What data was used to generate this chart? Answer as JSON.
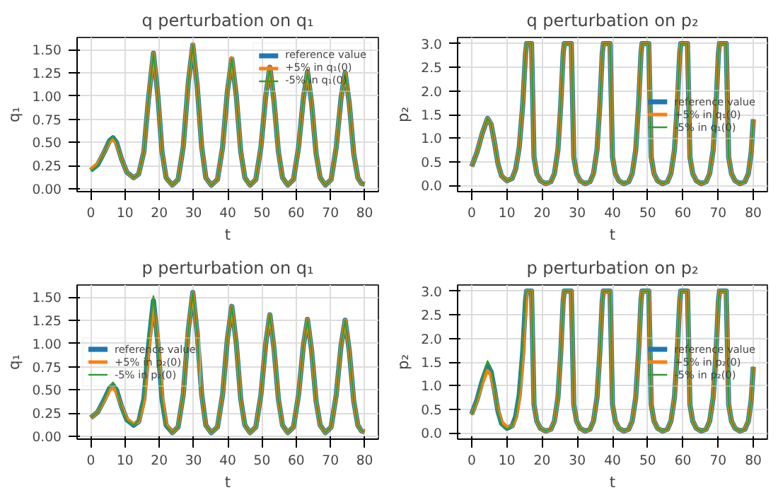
{
  "chart_data": [
    {
      "type": "line",
      "title": "q perturbation on q₁",
      "xlabel": "t",
      "ylabel": "q₁",
      "grid": true,
      "legend": "top right",
      "xlim": [
        -4,
        84
      ],
      "xticks": [
        0,
        10,
        20,
        30,
        40,
        50,
        60,
        70,
        80
      ],
      "ylim": [
        -0.03,
        1.63
      ],
      "yticks": [
        {
          "value": 0,
          "label": "0.00"
        },
        {
          "value": 0.25,
          "label": "0.25"
        },
        {
          "value": 0.5,
          "label": "0.50"
        },
        {
          "value": 0.75,
          "label": "0.75"
        },
        {
          "value": 1,
          "label": "1.00"
        },
        {
          "value": 1.25,
          "label": "1.25"
        },
        {
          "value": 1.5,
          "label": "1.50"
        }
      ],
      "x": [
        0,
        2,
        4,
        5.5,
        6.5,
        7.5,
        9,
        10.5,
        12.5,
        14,
        15.5,
        16.8,
        18.3,
        19.6,
        20.8,
        22,
        23.8,
        25.5,
        27,
        28.5,
        29.8,
        31.1,
        32.4,
        33.6,
        35.2,
        37,
        38.5,
        39.9,
        41.2,
        42.5,
        43.8,
        45,
        46.5,
        48.2,
        49.7,
        51.1,
        52.3,
        53.5,
        54.8,
        56,
        57.5,
        59.2,
        60.7,
        62.1,
        63.3,
        64.5,
        65.8,
        67,
        68.5,
        70.2,
        71.7,
        73.1,
        74.3,
        75.5,
        76.8,
        78,
        79,
        80
      ],
      "series": [
        {
          "name": "reference value",
          "color": "#1f77b4",
          "values": [
            0.2,
            0.26,
            0.4,
            0.52,
            0.55,
            0.5,
            0.32,
            0.18,
            0.12,
            0.16,
            0.4,
            0.95,
            1.46,
            1.0,
            0.4,
            0.12,
            0.04,
            0.1,
            0.45,
            1.15,
            1.55,
            1.1,
            0.45,
            0.12,
            0.04,
            0.1,
            0.45,
            1.05,
            1.4,
            1.0,
            0.4,
            0.12,
            0.04,
            0.1,
            0.45,
            1.0,
            1.31,
            0.95,
            0.4,
            0.12,
            0.04,
            0.1,
            0.45,
            0.98,
            1.26,
            0.92,
            0.38,
            0.12,
            0.04,
            0.1,
            0.45,
            0.98,
            1.25,
            0.92,
            0.38,
            0.12,
            0.06,
            0.05
          ]
        },
        {
          "name": "+5% in q₁(0)",
          "color": "#ff7f0e",
          "values": [
            0.21,
            0.27,
            0.4,
            0.51,
            0.53,
            0.49,
            0.32,
            0.18,
            0.12,
            0.16,
            0.4,
            0.95,
            1.46,
            1.0,
            0.4,
            0.12,
            0.04,
            0.1,
            0.45,
            1.15,
            1.56,
            1.1,
            0.45,
            0.12,
            0.04,
            0.1,
            0.45,
            1.05,
            1.41,
            1.0,
            0.4,
            0.12,
            0.04,
            0.1,
            0.45,
            1.0,
            1.31,
            0.95,
            0.4,
            0.12,
            0.04,
            0.1,
            0.45,
            0.98,
            1.26,
            0.92,
            0.38,
            0.12,
            0.04,
            0.1,
            0.45,
            0.98,
            1.25,
            0.92,
            0.38,
            0.12,
            0.06,
            0.05
          ]
        },
        {
          "name": "-5% in q₁(0)",
          "color": "#2ca02c",
          "values": [
            0.19,
            0.25,
            0.4,
            0.53,
            0.56,
            0.51,
            0.32,
            0.18,
            0.12,
            0.16,
            0.4,
            0.95,
            1.46,
            1.0,
            0.4,
            0.12,
            0.04,
            0.1,
            0.45,
            1.15,
            1.55,
            1.1,
            0.45,
            0.12,
            0.04,
            0.1,
            0.45,
            1.05,
            1.4,
            1.0,
            0.4,
            0.12,
            0.04,
            0.1,
            0.45,
            1.0,
            1.31,
            0.95,
            0.4,
            0.12,
            0.04,
            0.1,
            0.45,
            0.98,
            1.26,
            0.92,
            0.38,
            0.12,
            0.04,
            0.1,
            0.45,
            0.98,
            1.25,
            0.92,
            0.38,
            0.12,
            0.06,
            0.05
          ]
        }
      ]
    },
    {
      "type": "line",
      "title": "q perturbation on p₂",
      "xlabel": "t",
      "ylabel": "p₂",
      "grid": true,
      "legend": "right",
      "xlim": [
        -4,
        84
      ],
      "xticks": [
        0,
        10,
        20,
        30,
        40,
        50,
        60,
        70,
        80
      ],
      "ylim": [
        -0.13,
        3.13
      ],
      "yticks": [
        {
          "value": 0,
          "label": "0.0"
        },
        {
          "value": 0.5,
          "label": "0.5"
        },
        {
          "value": 1,
          "label": "1.0"
        },
        {
          "value": 1.5,
          "label": "1.5"
        },
        {
          "value": 2,
          "label": "2.0"
        },
        {
          "value": 2.5,
          "label": "2.5"
        },
        {
          "value": 3,
          "label": "3.0"
        }
      ],
      "x": [
        0,
        1.5,
        3,
        4.5,
        5.5,
        6.5,
        7.5,
        8.5,
        10,
        11.5,
        12.5,
        13.5,
        14.5,
        15.3,
        15.6,
        17.0,
        17.3,
        17.7,
        18.5,
        19.5,
        21,
        22.5,
        23.5,
        24.5,
        25.3,
        26.0,
        26.3,
        28.3,
        28.6,
        29.0,
        29.8,
        30.8,
        32.2,
        33.6,
        34.6,
        35.6,
        36.4,
        37.1,
        37.4,
        39.3,
        39.6,
        40.0,
        40.8,
        41.8,
        43.2,
        44.6,
        45.6,
        46.6,
        47.4,
        48.1,
        48.4,
        50.3,
        50.6,
        51.0,
        51.8,
        52.8,
        54.2,
        55.6,
        56.6,
        57.6,
        58.4,
        59.1,
        59.4,
        61.3,
        61.6,
        62.0,
        62.8,
        63.8,
        65.2,
        66.6,
        67.6,
        68.6,
        69.4,
        70.1,
        70.4,
        72.3,
        72.6,
        73.0,
        73.8,
        74.8,
        76.2,
        77.6,
        78.6,
        79.4,
        80
      ],
      "series": [
        {
          "name": "reference value",
          "color": "#1f77b4",
          "values": [
            0.4,
            0.7,
            1.1,
            1.42,
            1.3,
            0.9,
            0.45,
            0.2,
            0.1,
            0.15,
            0.35,
            0.8,
            1.7,
            2.8,
            3.0,
            3.0,
            2.0,
            0.6,
            0.25,
            0.1,
            0.04,
            0.08,
            0.25,
            0.75,
            1.7,
            2.8,
            3.0,
            3.0,
            2.0,
            0.6,
            0.25,
            0.1,
            0.04,
            0.08,
            0.25,
            0.75,
            1.7,
            2.8,
            3.0,
            3.0,
            2.0,
            0.6,
            0.25,
            0.1,
            0.04,
            0.08,
            0.25,
            0.75,
            1.7,
            2.8,
            3.0,
            3.0,
            2.0,
            0.6,
            0.25,
            0.1,
            0.04,
            0.08,
            0.25,
            0.75,
            1.7,
            2.8,
            3.0,
            3.0,
            2.0,
            0.6,
            0.25,
            0.1,
            0.04,
            0.08,
            0.25,
            0.75,
            1.7,
            2.8,
            3.0,
            3.0,
            2.0,
            0.6,
            0.25,
            0.1,
            0.04,
            0.08,
            0.25,
            0.7,
            1.4
          ]
        },
        {
          "name": "+5% in q₁(0)",
          "color": "#ff7f0e",
          "values": [
            0.4,
            0.7,
            1.1,
            1.42,
            1.3,
            0.9,
            0.45,
            0.2,
            0.1,
            0.15,
            0.35,
            0.8,
            1.7,
            2.8,
            3.0,
            3.0,
            2.0,
            0.6,
            0.25,
            0.1,
            0.04,
            0.08,
            0.25,
            0.75,
            1.7,
            2.8,
            3.0,
            3.0,
            2.0,
            0.6,
            0.25,
            0.1,
            0.04,
            0.08,
            0.25,
            0.75,
            1.7,
            2.8,
            3.0,
            3.0,
            2.0,
            0.6,
            0.25,
            0.1,
            0.04,
            0.08,
            0.25,
            0.75,
            1.7,
            2.8,
            3.0,
            3.0,
            2.0,
            0.6,
            0.25,
            0.1,
            0.04,
            0.08,
            0.25,
            0.75,
            1.7,
            2.8,
            3.0,
            3.0,
            2.0,
            0.6,
            0.25,
            0.1,
            0.04,
            0.08,
            0.25,
            0.75,
            1.7,
            2.8,
            3.0,
            3.0,
            2.0,
            0.6,
            0.25,
            0.1,
            0.04,
            0.08,
            0.25,
            0.7,
            1.4
          ]
        },
        {
          "name": "-5% in q₁(0)",
          "color": "#2ca02c",
          "values": [
            0.4,
            0.7,
            1.1,
            1.42,
            1.3,
            0.9,
            0.45,
            0.2,
            0.1,
            0.15,
            0.35,
            0.8,
            1.7,
            2.8,
            3.0,
            3.0,
            2.0,
            0.6,
            0.25,
            0.1,
            0.04,
            0.08,
            0.25,
            0.75,
            1.7,
            2.8,
            3.0,
            3.0,
            2.0,
            0.6,
            0.25,
            0.1,
            0.04,
            0.08,
            0.25,
            0.75,
            1.7,
            2.8,
            3.0,
            3.0,
            2.0,
            0.6,
            0.25,
            0.1,
            0.04,
            0.08,
            0.25,
            0.75,
            1.7,
            2.8,
            3.0,
            3.0,
            2.0,
            0.6,
            0.25,
            0.1,
            0.04,
            0.08,
            0.25,
            0.75,
            1.7,
            2.8,
            3.0,
            3.0,
            2.0,
            0.6,
            0.25,
            0.1,
            0.04,
            0.08,
            0.25,
            0.75,
            1.7,
            2.8,
            3.0,
            3.0,
            2.0,
            0.6,
            0.25,
            0.1,
            0.04,
            0.08,
            0.25,
            0.7,
            1.4
          ]
        }
      ]
    },
    {
      "type": "line",
      "title": "p perturbation on q₁",
      "xlabel": "t",
      "ylabel": "q₁",
      "grid": true,
      "legend": "left",
      "xlim": [
        -4,
        84
      ],
      "xticks": [
        0,
        10,
        20,
        30,
        40,
        50,
        60,
        70,
        80
      ],
      "ylim": [
        -0.03,
        1.63
      ],
      "yticks": [
        {
          "value": 0,
          "label": "0.00"
        },
        {
          "value": 0.25,
          "label": "0.25"
        },
        {
          "value": 0.5,
          "label": "0.50"
        },
        {
          "value": 0.75,
          "label": "0.75"
        },
        {
          "value": 1,
          "label": "1.00"
        },
        {
          "value": 1.25,
          "label": "1.25"
        },
        {
          "value": 1.5,
          "label": "1.50"
        }
      ],
      "x": [
        0,
        2,
        4,
        5.5,
        6.5,
        7.5,
        9,
        10.5,
        12.5,
        14,
        15.5,
        16.8,
        18.3,
        19.6,
        20.8,
        22,
        23.8,
        25.5,
        27,
        28.5,
        29.8,
        31.1,
        32.4,
        33.6,
        35.2,
        37,
        38.5,
        39.9,
        41.2,
        42.5,
        43.8,
        45,
        46.5,
        48.2,
        49.7,
        51.1,
        52.3,
        53.5,
        54.8,
        56,
        57.5,
        59.2,
        60.7,
        62.1,
        63.3,
        64.5,
        65.8,
        67,
        68.5,
        70.2,
        71.7,
        73.1,
        74.3,
        75.5,
        76.8,
        78,
        79,
        80
      ],
      "series": [
        {
          "name": "reference value",
          "color": "#1f77b4",
          "values": [
            0.2,
            0.26,
            0.4,
            0.52,
            0.55,
            0.5,
            0.32,
            0.18,
            0.12,
            0.16,
            0.4,
            0.95,
            1.46,
            1.0,
            0.4,
            0.12,
            0.04,
            0.1,
            0.45,
            1.15,
            1.55,
            1.1,
            0.45,
            0.12,
            0.04,
            0.1,
            0.45,
            1.05,
            1.4,
            1.0,
            0.4,
            0.12,
            0.04,
            0.1,
            0.45,
            1.0,
            1.31,
            0.95,
            0.4,
            0.12,
            0.04,
            0.1,
            0.45,
            0.98,
            1.26,
            0.92,
            0.38,
            0.12,
            0.04,
            0.1,
            0.45,
            0.98,
            1.25,
            0.92,
            0.38,
            0.12,
            0.06,
            0.05
          ]
        },
        {
          "name": "+5% in p₂(0)",
          "color": "#ff7f0e",
          "values": [
            0.2,
            0.26,
            0.39,
            0.5,
            0.52,
            0.48,
            0.32,
            0.19,
            0.13,
            0.16,
            0.36,
            0.88,
            1.41,
            1.05,
            0.45,
            0.13,
            0.04,
            0.1,
            0.45,
            1.15,
            1.55,
            1.1,
            0.45,
            0.12,
            0.04,
            0.1,
            0.45,
            1.05,
            1.4,
            1.0,
            0.4,
            0.12,
            0.04,
            0.1,
            0.45,
            1.0,
            1.31,
            0.95,
            0.4,
            0.12,
            0.04,
            0.1,
            0.45,
            0.98,
            1.26,
            0.92,
            0.38,
            0.12,
            0.04,
            0.1,
            0.45,
            0.98,
            1.25,
            0.92,
            0.38,
            0.12,
            0.06,
            0.05
          ]
        },
        {
          "name": "-5% in p₂(0)",
          "color": "#2ca02c",
          "values": [
            0.2,
            0.26,
            0.41,
            0.54,
            0.58,
            0.52,
            0.31,
            0.17,
            0.12,
            0.17,
            0.44,
            1.02,
            1.51,
            0.96,
            0.37,
            0.11,
            0.04,
            0.1,
            0.45,
            1.15,
            1.55,
            1.1,
            0.45,
            0.12,
            0.04,
            0.1,
            0.45,
            1.05,
            1.4,
            1.0,
            0.4,
            0.12,
            0.04,
            0.1,
            0.45,
            1.0,
            1.31,
            0.95,
            0.4,
            0.12,
            0.04,
            0.1,
            0.45,
            0.98,
            1.26,
            0.92,
            0.38,
            0.12,
            0.04,
            0.1,
            0.45,
            0.98,
            1.25,
            0.92,
            0.38,
            0.12,
            0.06,
            0.05
          ]
        }
      ]
    },
    {
      "type": "line",
      "title": "p perturbation on p₂",
      "xlabel": "t",
      "ylabel": "p₂",
      "grid": true,
      "legend": "right",
      "xlim": [
        -4,
        84
      ],
      "xticks": [
        0,
        10,
        20,
        30,
        40,
        50,
        60,
        70,
        80
      ],
      "ylim": [
        -0.13,
        3.13
      ],
      "yticks": [
        {
          "value": 0,
          "label": "0.0"
        },
        {
          "value": 0.5,
          "label": "0.5"
        },
        {
          "value": 1,
          "label": "1.0"
        },
        {
          "value": 1.5,
          "label": "1.5"
        },
        {
          "value": 2,
          "label": "2.0"
        },
        {
          "value": 2.5,
          "label": "2.5"
        },
        {
          "value": 3,
          "label": "3.0"
        }
      ],
      "x": [
        0,
        1.5,
        3,
        4.5,
        5.5,
        6.5,
        7.5,
        8.5,
        10,
        11.5,
        12.5,
        13.5,
        14.5,
        15.3,
        15.6,
        17.0,
        17.3,
        17.7,
        18.5,
        19.5,
        21,
        22.5,
        23.5,
        24.5,
        25.3,
        26.0,
        26.3,
        28.3,
        28.6,
        29.0,
        29.8,
        30.8,
        32.2,
        33.6,
        34.6,
        35.6,
        36.4,
        37.1,
        37.4,
        39.3,
        39.6,
        40.0,
        40.8,
        41.8,
        43.2,
        44.6,
        45.6,
        46.6,
        47.4,
        48.1,
        48.4,
        50.3,
        50.6,
        51.0,
        51.8,
        52.8,
        54.2,
        55.6,
        56.6,
        57.6,
        58.4,
        59.1,
        59.4,
        61.3,
        61.6,
        62.0,
        62.8,
        63.8,
        65.2,
        66.6,
        67.6,
        68.6,
        69.4,
        70.1,
        70.4,
        72.3,
        72.6,
        73.0,
        73.8,
        74.8,
        76.2,
        77.6,
        78.6,
        79.4,
        80
      ],
      "series": [
        {
          "name": "reference value",
          "color": "#1f77b4",
          "values": [
            0.4,
            0.7,
            1.1,
            1.42,
            1.3,
            0.9,
            0.45,
            0.2,
            0.1,
            0.15,
            0.35,
            0.8,
            1.7,
            2.8,
            3.0,
            3.0,
            2.0,
            0.6,
            0.25,
            0.1,
            0.04,
            0.08,
            0.25,
            0.75,
            1.7,
            2.8,
            3.0,
            3.0,
            2.0,
            0.6,
            0.25,
            0.1,
            0.04,
            0.08,
            0.25,
            0.75,
            1.7,
            2.8,
            3.0,
            3.0,
            2.0,
            0.6,
            0.25,
            0.1,
            0.04,
            0.08,
            0.25,
            0.75,
            1.7,
            2.8,
            3.0,
            3.0,
            2.0,
            0.6,
            0.25,
            0.1,
            0.04,
            0.08,
            0.25,
            0.75,
            1.7,
            2.8,
            3.0,
            3.0,
            2.0,
            0.6,
            0.25,
            0.1,
            0.04,
            0.08,
            0.25,
            0.75,
            1.7,
            2.8,
            3.0,
            3.0,
            2.0,
            0.6,
            0.25,
            0.1,
            0.04,
            0.08,
            0.25,
            0.7,
            1.4
          ]
        },
        {
          "name": "+5% in p₂(0)",
          "color": "#ff7f0e",
          "values": [
            0.38,
            0.68,
            1.05,
            1.32,
            1.22,
            0.88,
            0.48,
            0.24,
            0.13,
            0.14,
            0.3,
            0.7,
            1.55,
            2.65,
            3.0,
            3.0,
            2.0,
            0.6,
            0.25,
            0.1,
            0.04,
            0.08,
            0.25,
            0.75,
            1.7,
            2.8,
            3.0,
            3.0,
            2.0,
            0.6,
            0.25,
            0.1,
            0.04,
            0.08,
            0.25,
            0.75,
            1.7,
            2.8,
            3.0,
            3.0,
            2.0,
            0.6,
            0.25,
            0.1,
            0.04,
            0.08,
            0.25,
            0.75,
            1.7,
            2.8,
            3.0,
            3.0,
            2.0,
            0.6,
            0.25,
            0.1,
            0.04,
            0.08,
            0.25,
            0.75,
            1.7,
            2.8,
            3.0,
            3.0,
            2.0,
            0.6,
            0.25,
            0.1,
            0.04,
            0.08,
            0.25,
            0.75,
            1.7,
            2.8,
            3.0,
            3.0,
            2.0,
            0.6,
            0.25,
            0.1,
            0.04,
            0.08,
            0.25,
            0.7,
            1.4
          ]
        },
        {
          "name": "-5% in p₂(0)",
          "color": "#2ca02c",
          "values": [
            0.38,
            0.72,
            1.15,
            1.52,
            1.38,
            0.92,
            0.42,
            0.17,
            0.08,
            0.15,
            0.38,
            0.88,
            1.85,
            2.9,
            3.0,
            3.0,
            2.0,
            0.6,
            0.25,
            0.1,
            0.04,
            0.08,
            0.25,
            0.75,
            1.7,
            2.8,
            3.0,
            3.0,
            2.0,
            0.6,
            0.25,
            0.1,
            0.04,
            0.08,
            0.25,
            0.75,
            1.7,
            2.8,
            3.0,
            3.0,
            2.0,
            0.6,
            0.25,
            0.1,
            0.04,
            0.08,
            0.25,
            0.75,
            1.7,
            2.8,
            3.0,
            3.0,
            2.0,
            0.6,
            0.25,
            0.1,
            0.04,
            0.08,
            0.25,
            0.75,
            1.7,
            2.8,
            3.0,
            3.0,
            2.0,
            0.6,
            0.25,
            0.1,
            0.04,
            0.08,
            0.25,
            0.75,
            1.7,
            2.8,
            3.0,
            3.0,
            2.0,
            0.6,
            0.25,
            0.1,
            0.04,
            0.08,
            0.25,
            0.7,
            1.4
          ]
        }
      ]
    }
  ]
}
